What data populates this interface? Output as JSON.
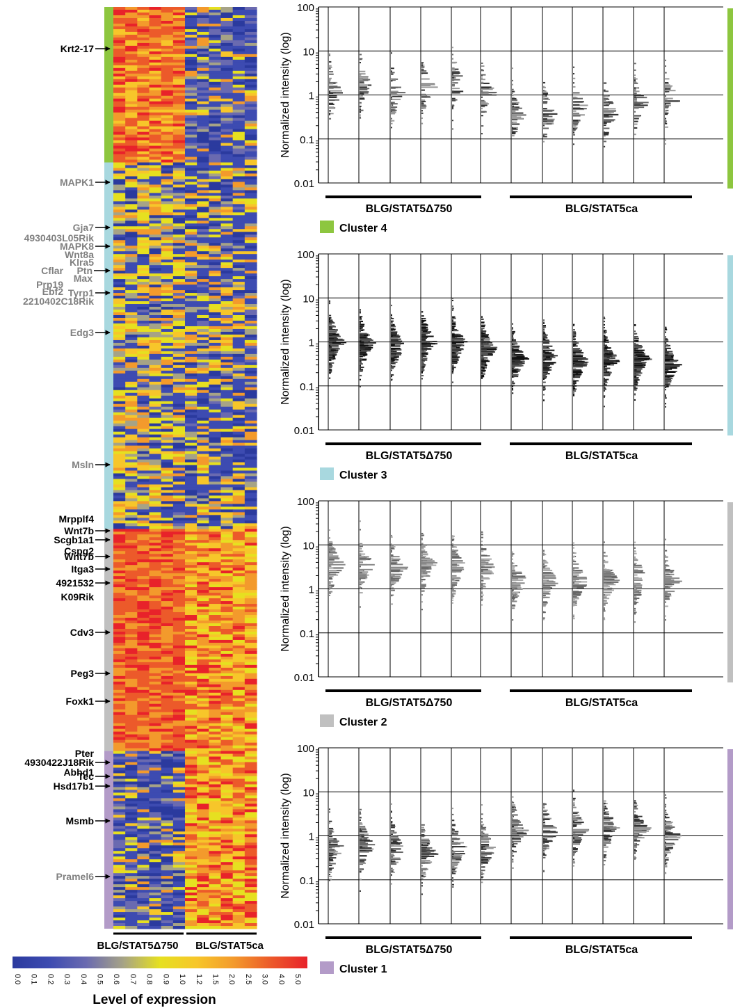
{
  "heatmap": {
    "groups": [
      "BLG/STAT5Δ750",
      "BLG/STAT5ca"
    ],
    "group_sample_count": [
      6,
      6
    ],
    "clusters_top_to_bottom": [
      {
        "name": "Cluster 4",
        "color": "#8dc63f",
        "rows": 56,
        "pattern": "high-vs-low"
      },
      {
        "name": "Cluster 3",
        "color": "#a8d8df",
        "rows": 132,
        "pattern": "mixed-mid"
      },
      {
        "name": "Cluster 2",
        "color": "#c0c0c0",
        "rows": 80,
        "pattern": "high-both"
      },
      {
        "name": "Cluster 1",
        "color": "#b39bc8",
        "rows": 64,
        "pattern": "low-vs-high"
      }
    ],
    "gene_labels": [
      {
        "text": "Krt2-17",
        "color": "#000000"
      },
      {
        "text": "MAPK1",
        "color": "#808080"
      },
      {
        "text": "Gja7",
        "color": "#808080"
      },
      {
        "text": "4930403L05Rik",
        "color": "#808080"
      },
      {
        "text": "MAPK8",
        "color": "#808080"
      },
      {
        "text": "Wnt8a",
        "color": "#808080"
      },
      {
        "text": "Klra5",
        "color": "#808080"
      },
      {
        "text": "Cflar",
        "color": "#808080"
      },
      {
        "text": "Ptn",
        "color": "#808080"
      },
      {
        "text": "Max",
        "color": "#808080"
      },
      {
        "text": "Prp19",
        "color": "#808080"
      },
      {
        "text": "Ebf2",
        "color": "#808080"
      },
      {
        "text": "Tyrp1",
        "color": "#808080"
      },
      {
        "text": "2210402C18Rik",
        "color": "#808080"
      },
      {
        "text": "Edg3",
        "color": "#808080"
      },
      {
        "text": "Msln",
        "color": "#808080"
      },
      {
        "text": "Mrpplf4",
        "color": "#000000"
      },
      {
        "text": "Wnt7b",
        "color": "#000000"
      },
      {
        "text": "Scgb1a1",
        "color": "#000000"
      },
      {
        "text": "Cspg2",
        "color": "#000000"
      },
      {
        "text": "Wnt7b",
        "color": "#000000"
      },
      {
        "text": "Itga3",
        "color": "#000000"
      },
      {
        "text": "4921532",
        "color": "#000000"
      },
      {
        "text": "K09Rik",
        "color": "#000000"
      },
      {
        "text": "Cdv3",
        "color": "#000000"
      },
      {
        "text": "Peg3",
        "color": "#000000"
      },
      {
        "text": "Foxk1",
        "color": "#000000"
      },
      {
        "text": "Pter",
        "color": "#000000"
      },
      {
        "text": "4930422J18Rik",
        "color": "#000000"
      },
      {
        "text": "Abhd1",
        "color": "#000000"
      },
      {
        "text": "Tec",
        "color": "#000000"
      },
      {
        "text": "Hsd17b1",
        "color": "#000000"
      },
      {
        "text": "Msmb",
        "color": "#000000"
      },
      {
        "text": "Pramel6",
        "color": "#808080"
      }
    ]
  },
  "colorbar": {
    "title": "Level of expression",
    "ticks": [
      "0.0",
      "0.1",
      "0.2",
      "0.3",
      "0.4",
      "0.5",
      "0.6",
      "0.7",
      "0.8",
      "0.9",
      "1.0",
      "1.2",
      "1.5",
      "2.0",
      "2.5",
      "3.0",
      "4.0",
      "5.0"
    ],
    "colors": [
      "#2b3a9e",
      "#3d4bb1",
      "#6a6ab0",
      "#a6a386",
      "#e6e020",
      "#f7c62a",
      "#f39a2c",
      "#ec5a2a",
      "#e8222a"
    ]
  },
  "chart_data": [
    {
      "type": "scatter",
      "subtype": "strip-histogram",
      "ylabel": "Normalized intensity (log)",
      "yscale": "log",
      "ylim": [
        0.01,
        100
      ],
      "yticks": [
        "100",
        "10",
        "1",
        "0.1",
        "0.01"
      ],
      "grid": true,
      "groups": [
        "BLG/STAT5Δ750",
        "BLG/STAT5ca"
      ],
      "samples_per_group": 6,
      "legend": {
        "label": "Cluster 4",
        "color": "#8dc63f"
      },
      "lane_medians": [
        1.2,
        1.6,
        1.0,
        1.4,
        1.8,
        1.1,
        0.35,
        0.35,
        0.5,
        0.4,
        0.7,
        0.8
      ],
      "lane_density": "sparse",
      "shade": "mid"
    },
    {
      "type": "scatter",
      "subtype": "strip-histogram",
      "ylabel": "Normalized intensity (log)",
      "yscale": "log",
      "ylim": [
        0.01,
        100
      ],
      "yticks": [
        "100",
        "10",
        "1",
        "0.1",
        "0.01"
      ],
      "grid": true,
      "groups": [
        "BLG/STAT5Δ750",
        "BLG/STAT5ca"
      ],
      "samples_per_group": 6,
      "legend": {
        "label": "Cluster 3",
        "color": "#a8d8df"
      },
      "lane_medians": [
        1.0,
        0.9,
        0.8,
        1.0,
        0.9,
        0.7,
        0.4,
        0.45,
        0.35,
        0.4,
        0.4,
        0.3
      ],
      "lane_density": "dense",
      "shade": "dark"
    },
    {
      "type": "scatter",
      "subtype": "strip-histogram",
      "ylabel": "Normalized intensity (log)",
      "yscale": "log",
      "ylim": [
        0.01,
        100
      ],
      "yticks": [
        "100",
        "10",
        "1",
        "0.1",
        "0.01"
      ],
      "grid": true,
      "groups": [
        "BLG/STAT5Δ750",
        "BLG/STAT5ca"
      ],
      "samples_per_group": 6,
      "legend": {
        "label": "Cluster 2",
        "color": "#c0c0c0"
      },
      "lane_medians": [
        3.5,
        3.5,
        3.0,
        3.5,
        3.0,
        3.0,
        1.5,
        1.5,
        1.5,
        1.5,
        1.6,
        1.5
      ],
      "lane_density": "medium",
      "shade": "light"
    },
    {
      "type": "scatter",
      "subtype": "strip-histogram",
      "ylabel": "Normalized intensity (log)",
      "yscale": "log",
      "ylim": [
        0.01,
        100
      ],
      "yticks": [
        "100",
        "10",
        "1",
        "0.1",
        "0.01"
      ],
      "grid": true,
      "groups": [
        "BLG/STAT5Δ750",
        "BLG/STAT5ca"
      ],
      "samples_per_group": 6,
      "legend": {
        "label": "Cluster 1",
        "color": "#b39bc8"
      },
      "lane_medians": [
        0.5,
        0.6,
        0.5,
        0.4,
        0.5,
        0.5,
        1.3,
        1.3,
        1.4,
        1.5,
        1.5,
        1.0
      ],
      "lane_density": "medium",
      "shade": "mid"
    }
  ]
}
